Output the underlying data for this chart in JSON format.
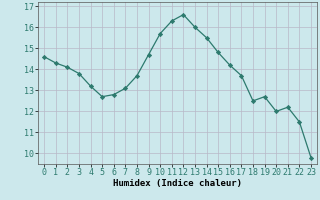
{
  "x": [
    0,
    1,
    2,
    3,
    4,
    5,
    6,
    7,
    8,
    9,
    10,
    11,
    12,
    13,
    14,
    15,
    16,
    17,
    18,
    19,
    20,
    21,
    22,
    23
  ],
  "y": [
    14.6,
    14.3,
    14.1,
    13.8,
    13.2,
    12.7,
    12.8,
    13.1,
    13.7,
    14.7,
    15.7,
    16.3,
    16.6,
    16.0,
    15.5,
    14.8,
    14.2,
    13.7,
    12.5,
    12.7,
    12.0,
    12.2,
    11.5,
    9.8
  ],
  "line_color": "#2d7a6e",
  "marker": "D",
  "marker_size": 2.2,
  "bg_color": "#cce8ec",
  "grid_color": "#b8b8c8",
  "xlabel": "Humidex (Indice chaleur)",
  "xlim": [
    -0.5,
    23.5
  ],
  "ylim": [
    9.5,
    17.2
  ],
  "yticks": [
    10,
    11,
    12,
    13,
    14,
    15,
    16,
    17
  ],
  "xticks": [
    0,
    1,
    2,
    3,
    4,
    5,
    6,
    7,
    8,
    9,
    10,
    11,
    12,
    13,
    14,
    15,
    16,
    17,
    18,
    19,
    20,
    21,
    22,
    23
  ],
  "label_fontsize": 6.5,
  "tick_fontsize": 6.0,
  "line_width": 0.9
}
